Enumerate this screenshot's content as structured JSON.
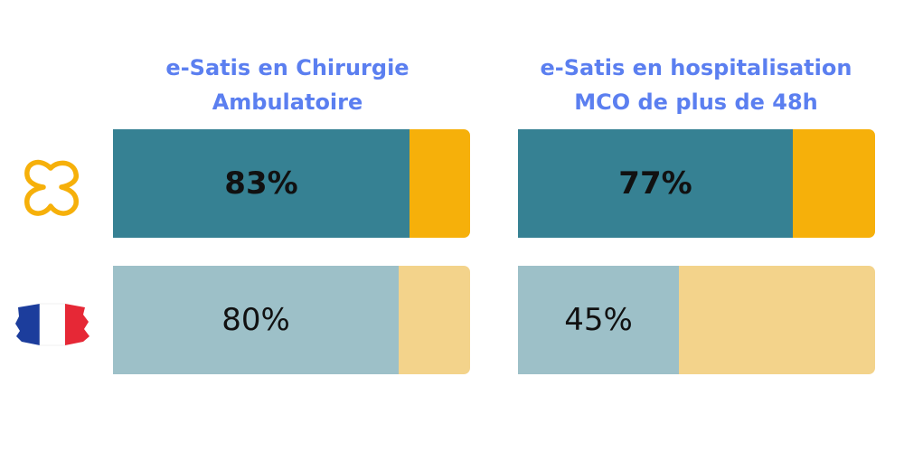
{
  "chart_data": {
    "type": "bar",
    "title": "",
    "categories": [
      [
        "e-Satis en Chirurgie",
        "Ambulatoire"
      ],
      [
        "e-Satis en  hospitalisation",
        "MCO de plus de 48h"
      ]
    ],
    "series": [
      {
        "values": [
          83,
          77
        ],
        "labels": [
          "83%",
          "77%"
        ],
        "bold": true,
        "color": "#368193",
        "rest_color": "#f6b00a",
        "icon": "hospital-logo-icon"
      },
      {
        "values": [
          80,
          45
        ],
        "labels": [
          "80%",
          "45%"
        ],
        "bold": false,
        "color": "#9dc0c8",
        "rest_color": "#f3d38b",
        "icon": "france-flag-icon"
      }
    ],
    "ylim": [
      0,
      100
    ],
    "grid": false
  },
  "colors": {
    "title": "#5b7ff0",
    "logo": "#f6b00a",
    "flag_blue": "#1c3d9c",
    "flag_red": "#e62836"
  }
}
